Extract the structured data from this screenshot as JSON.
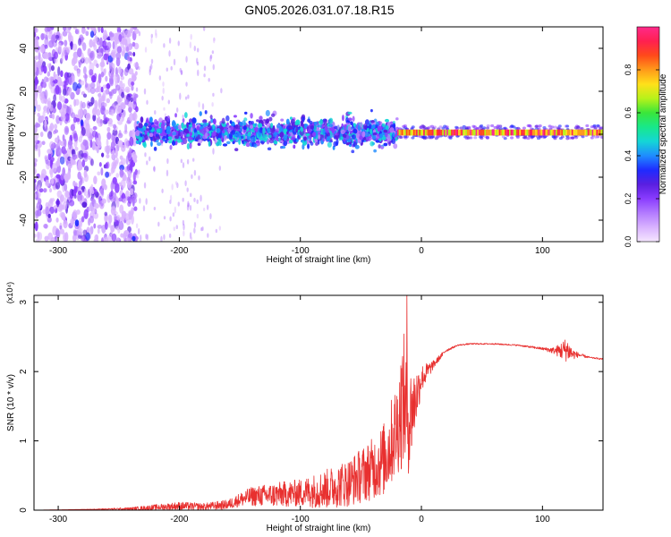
{
  "title": "GN05.2026.031.07.18.R15",
  "colors": {
    "snr_line": "#e8302f",
    "axis": "#000000",
    "background": "#ffffff",
    "colorbar": [
      "#f5e6ff",
      "#d9b3ff",
      "#b37bff",
      "#8a3cff",
      "#5a1fe0",
      "#1f2bff",
      "#1f8cff",
      "#14d6d6",
      "#18e88a",
      "#3ae63a",
      "#b7f21a",
      "#ffe01a",
      "#ff9a1a",
      "#ff4a1a",
      "#ff2050",
      "#ff2a8a"
    ]
  },
  "chart_data": [
    {
      "type": "heatmap",
      "name": "spectrogram",
      "title": "GN05.2026.031.07.18.R15",
      "xlabel": "Height of straight line (km)",
      "ylabel": "Frequency (Hz)",
      "xlim": [
        -320,
        150
      ],
      "ylim": [
        -50,
        50
      ],
      "xticks": [
        -300,
        -200,
        -100,
        0,
        100
      ],
      "yticks": [
        -40,
        -20,
        0,
        20,
        40
      ],
      "xtick_labels": [
        "-300",
        "-200",
        "-100",
        "0",
        "100"
      ],
      "ytick_labels": [
        "-40",
        "-20",
        "0",
        "20",
        "40"
      ],
      "colorbar": {
        "label": "Normalized spectral amplitude",
        "range": [
          0,
          1
        ],
        "ticks": [
          0.0,
          0.2,
          0.4,
          0.6,
          0.8
        ],
        "tick_labels": [
          "0.0",
          "0.2",
          "0.4",
          "0.6",
          "0.8"
        ]
      },
      "regions": [
        {
          "x_range": [
            -320,
            -235
          ],
          "y_range": [
            -50,
            50
          ],
          "amplitude": "0.05-0.25",
          "note": "broadband scattered noise"
        },
        {
          "x_range": [
            -235,
            -20
          ],
          "y_range": [
            -6,
            8
          ],
          "amplitude": "0.1-0.45",
          "note": "noisy band around 0 Hz"
        },
        {
          "x_range": [
            -20,
            150
          ],
          "y_range": [
            -1,
            3
          ],
          "amplitude": "0.6-1.0",
          "note": "strong narrow tone near 1 Hz"
        }
      ]
    },
    {
      "type": "line",
      "name": "snr",
      "xlabel": "Height of straight line (km)",
      "ylabel": "SNR (10 * v/v)",
      "y_multiplier": "(x10⁴)",
      "xlim": [
        -320,
        150
      ],
      "ylim": [
        0,
        3.1
      ],
      "xticks": [
        -300,
        -200,
        -100,
        0,
        100
      ],
      "yticks": [
        0,
        1,
        2,
        3
      ],
      "xtick_labels": [
        "-300",
        "-200",
        "-100",
        "0",
        "100"
      ],
      "ytick_labels": [
        "0",
        "1",
        "2",
        "3"
      ],
      "series": [
        {
          "name": "SNR",
          "x": [
            -320,
            -280,
            -240,
            -200,
            -180,
            -160,
            -150,
            -140,
            -120,
            -100,
            -80,
            -60,
            -40,
            -30,
            -20,
            -15,
            -10,
            -5,
            0,
            10,
            20,
            30,
            40,
            60,
            80,
            100,
            110,
            115,
            120,
            125,
            130,
            140,
            150
          ],
          "y": [
            0.0,
            0.01,
            0.02,
            0.06,
            0.05,
            0.08,
            0.15,
            0.2,
            0.22,
            0.25,
            0.3,
            0.4,
            0.6,
            0.75,
            1.2,
            1.6,
            1.3,
            1.6,
            1.9,
            2.1,
            2.3,
            2.38,
            2.4,
            2.4,
            2.38,
            2.33,
            2.3,
            2.3,
            2.32,
            2.25,
            2.24,
            2.2,
            2.18
          ],
          "peak": {
            "x": -12,
            "y": 3.1
          },
          "noise_amplitude": [
            0,
            0,
            0.02,
            0.06,
            0.05,
            0.07,
            0.1,
            0.14,
            0.18,
            0.2,
            0.28,
            0.35,
            0.45,
            0.55,
            0.7,
            1.0,
            0.8,
            0.45,
            0.2,
            0.06,
            0.02,
            0.01,
            0.01,
            0.01,
            0.01,
            0.02,
            0.05,
            0.12,
            0.18,
            0.08,
            0.03,
            0.01,
            0.01
          ]
        }
      ]
    }
  ]
}
